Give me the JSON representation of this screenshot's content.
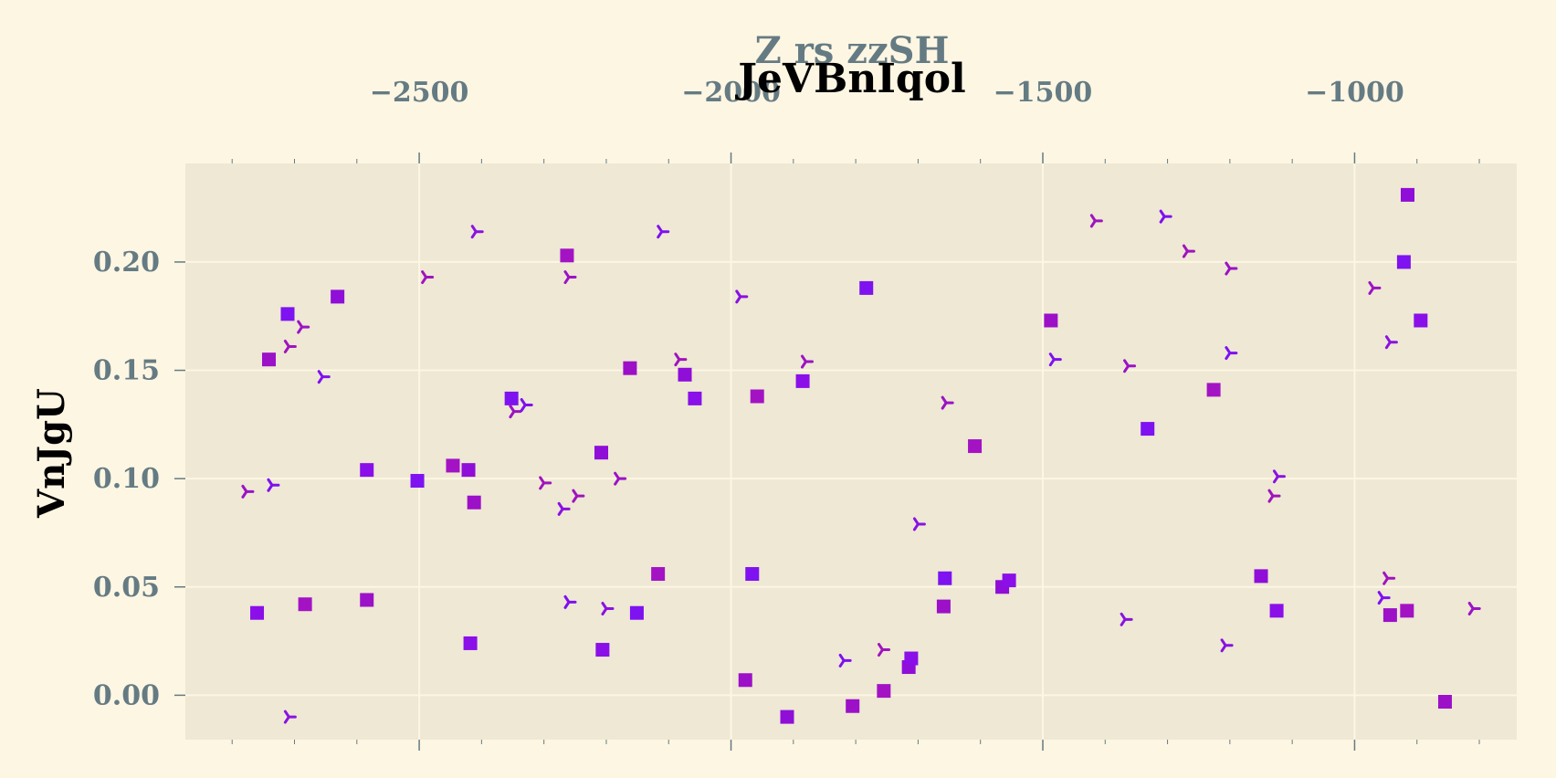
{
  "chart_data": {
    "type": "scatter",
    "title": "JeVBnIqol",
    "xlabel": "Z  rs zzSH",
    "ylabel": "VnJgU",
    "xlim": [
      -2875,
      -740
    ],
    "ylim": [
      -0.0205,
      0.2455
    ],
    "x_axis_position": "top",
    "grid": true,
    "x_ticks": [
      -2500,
      -2000,
      -1500,
      -1000
    ],
    "y_ticks": [
      0.0,
      0.05,
      0.1,
      0.15,
      0.2
    ],
    "x_tick_labels": [
      "−2500",
      "−2000",
      "−1500",
      "−1000"
    ],
    "y_tick_labels": [
      "0.00",
      "0.05",
      "0.10",
      "0.15",
      "0.20"
    ],
    "series": [
      {
        "marker": "square",
        "points": [
          [
            -2760,
            0.038
          ],
          [
            -2741,
            0.155
          ],
          [
            -2711,
            0.176
          ],
          [
            -2683,
            0.042
          ],
          [
            -2631,
            0.184
          ],
          [
            -2584,
            0.104
          ],
          [
            -2584,
            0.044
          ],
          [
            -2503,
            0.099
          ],
          [
            -2446,
            0.106
          ],
          [
            -2421,
            0.104
          ],
          [
            -2418,
            0.024
          ],
          [
            -2412,
            0.089
          ],
          [
            -2352,
            0.137
          ],
          [
            -2263,
            0.203
          ],
          [
            -2208,
            0.112
          ],
          [
            -2206,
            0.021
          ],
          [
            -2162,
            0.151
          ],
          [
            -2151,
            0.038
          ],
          [
            -2117,
            0.056
          ],
          [
            -2074,
            0.148
          ],
          [
            -2058,
            0.137
          ],
          [
            -1977,
            0.007
          ],
          [
            -1966,
            0.056
          ],
          [
            -1958,
            0.138
          ],
          [
            -1910,
            -0.01
          ],
          [
            -1885,
            0.145
          ],
          [
            -1805,
            -0.005
          ],
          [
            -1783,
            0.188
          ],
          [
            -1755,
            0.002
          ],
          [
            -1715,
            0.013
          ],
          [
            -1711,
            0.017
          ],
          [
            -1659,
            0.041
          ],
          [
            -1657,
            0.054
          ],
          [
            -1609,
            0.115
          ],
          [
            -1565,
            0.05
          ],
          [
            -1554,
            0.053
          ],
          [
            -1487,
            0.173
          ],
          [
            -1332,
            0.123
          ],
          [
            -1226,
            0.141
          ],
          [
            -1150,
            0.055
          ],
          [
            -1125,
            0.039
          ],
          [
            -943,
            0.037
          ],
          [
            -921,
            0.2
          ],
          [
            -916,
            0.039
          ],
          [
            -915,
            0.231
          ],
          [
            -894,
            0.173
          ],
          [
            -855,
            -0.003
          ]
        ]
      },
      {
        "marker": "tri",
        "points": [
          [
            -2777,
            0.094
          ],
          [
            -2736,
            0.097
          ],
          [
            -2709,
            0.161
          ],
          [
            -2709,
            -0.01
          ],
          [
            -2688,
            0.17
          ],
          [
            -2655,
            0.147
          ],
          [
            -2489,
            0.193
          ],
          [
            -2409,
            0.214
          ],
          [
            -2348,
            0.131
          ],
          [
            -2330,
            0.134
          ],
          [
            -2300,
            0.098
          ],
          [
            -2270,
            0.086
          ],
          [
            -2260,
            0.193
          ],
          [
            -2260,
            0.043
          ],
          [
            -2247,
            0.092
          ],
          [
            -2200,
            0.04
          ],
          [
            -2180,
            0.1
          ],
          [
            -2111,
            0.214
          ],
          [
            -2083,
            0.155
          ],
          [
            -1985,
            0.184
          ],
          [
            -1880,
            0.154
          ],
          [
            -1819,
            0.016
          ],
          [
            -1757,
            0.021
          ],
          [
            -1700,
            0.079
          ],
          [
            -1655,
            0.135
          ],
          [
            -1482,
            0.155
          ],
          [
            -1416,
            0.219
          ],
          [
            -1368,
            0.035
          ],
          [
            -1363,
            0.152
          ],
          [
            -1305,
            0.221
          ],
          [
            -1268,
            0.205
          ],
          [
            -1207,
            0.023
          ],
          [
            -1200,
            0.197
          ],
          [
            -1200,
            0.158
          ],
          [
            -1131,
            0.092
          ],
          [
            -1123,
            0.101
          ],
          [
            -970,
            0.188
          ],
          [
            -955,
            0.045
          ],
          [
            -947,
            0.054
          ],
          [
            -943,
            0.163
          ],
          [
            -810,
            0.04
          ]
        ]
      }
    ]
  }
}
